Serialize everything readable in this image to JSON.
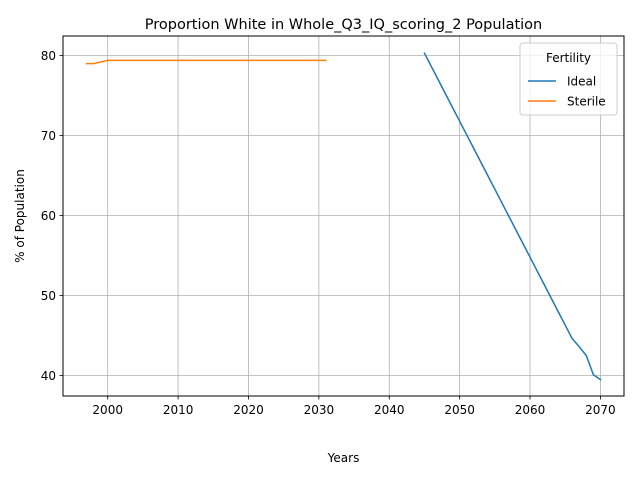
{
  "chart_data": {
    "type": "line",
    "title": "Proportion White in Whole_Q3_IQ_scoring_2 Population",
    "xlabel": "Years",
    "ylabel": "% of Population",
    "xlim": [
      1993.65,
      2073.35
    ],
    "ylim": [
      37.45,
      82.45
    ],
    "xticks": [
      2000,
      2010,
      2020,
      2030,
      2040,
      2050,
      2060,
      2070
    ],
    "yticks": [
      40,
      50,
      60,
      70,
      80
    ],
    "grid": true,
    "legend": {
      "title": "Fertility",
      "placement": "top-right"
    },
    "series": [
      {
        "name": "Ideal",
        "color": "#1f77b4",
        "x": [
          2045,
          2046,
          2047,
          2048,
          2049,
          2050,
          2051,
          2052,
          2053,
          2054,
          2055,
          2056,
          2057,
          2058,
          2059,
          2060,
          2061,
          2062,
          2063,
          2064,
          2065,
          2066,
          2067,
          2068,
          2069,
          2070
        ],
        "y": [
          80.3,
          78.6,
          76.9,
          75.2,
          73.5,
          71.8,
          70.1,
          68.4,
          66.7,
          65.0,
          63.3,
          61.6,
          59.9,
          58.2,
          56.5,
          54.8,
          53.1,
          51.4,
          49.7,
          48.0,
          46.3,
          44.6,
          43.6,
          42.5,
          40.1,
          39.5
        ]
      },
      {
        "name": "Sterile",
        "color": "#ff7f0e",
        "x": [
          1997,
          1998,
          1999,
          2000,
          2001,
          2005,
          2010,
          2015,
          2020,
          2025,
          2031
        ],
        "y": [
          79.0,
          79.0,
          79.2,
          79.4,
          79.4,
          79.4,
          79.4,
          79.4,
          79.4,
          79.4,
          79.4
        ]
      }
    ]
  }
}
